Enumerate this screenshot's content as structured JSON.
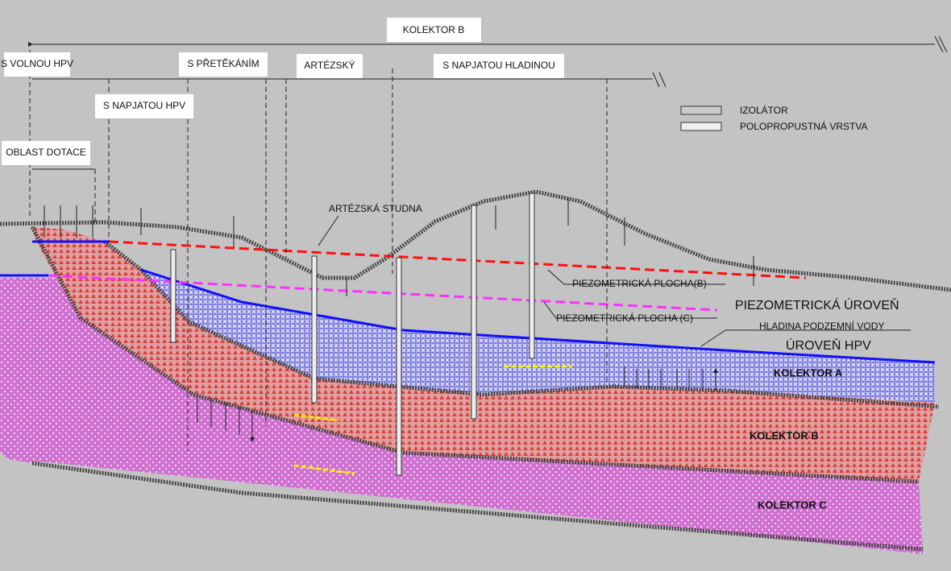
{
  "header": {
    "title": "KOLEKTOR B"
  },
  "zones": [
    {
      "label": "S VOLNOU HPV"
    },
    {
      "label": "S PŘETĚKÁNÍM"
    },
    {
      "label": "ARTÉZSKÝ"
    },
    {
      "label": "S NAPJATOU HLADINOU"
    },
    {
      "label": "S NAPJATOU HPV"
    },
    {
      "label": "OBLAST DOTACE"
    }
  ],
  "legend": [
    {
      "label": "IZOLÁTOR"
    },
    {
      "label": "POLOPROPUSTNÁ VRSTVA"
    }
  ],
  "labels": {
    "well": "ARTÉZSKÁ STUDNA",
    "piezo_b": "PIEZOMETRICKÁ PLOCHA(B)",
    "piezo_level": "PIEZOMETRICKÁ ÚROVEŇ",
    "piezo_c": "PIEZOMETRICKÁ PLOCHA (C)",
    "water_table": "HLADINA PODZEMNÍ VODY",
    "hpv_level": "ÚROVEŇ HPV"
  },
  "layers": [
    {
      "label": "KOLEKTOR A"
    },
    {
      "label": "KOLEKTOR B"
    },
    {
      "label": "KOLEKTOR C"
    }
  ]
}
